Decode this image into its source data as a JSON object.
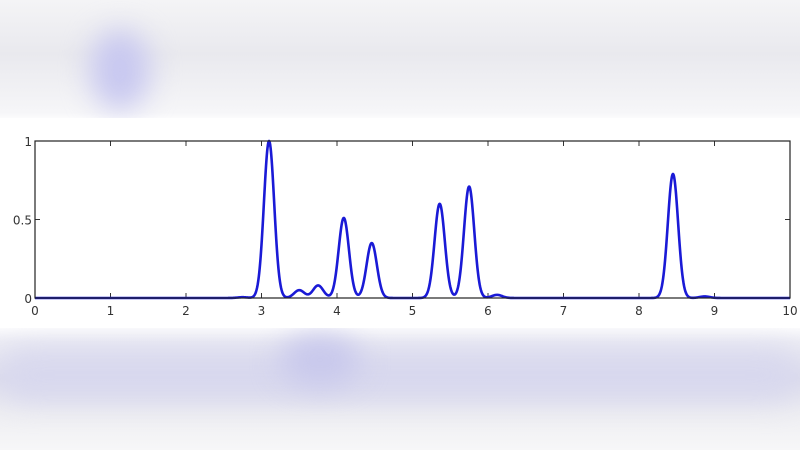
{
  "chart_data": {
    "type": "line",
    "title": "",
    "xlabel": "",
    "ylabel": "",
    "xlim": [
      0,
      10
    ],
    "ylim": [
      0,
      1
    ],
    "xticks": [
      "0",
      "1",
      "2",
      "3",
      "4",
      "5",
      "6",
      "7",
      "8",
      "9",
      "10"
    ],
    "yticks": [
      "0",
      "0.5",
      "1"
    ],
    "grid": false,
    "line_color": "#1a1ad6",
    "peaks": [
      {
        "x": 2.75,
        "y": 0.005
      },
      {
        "x": 3.1,
        "y": 1.0
      },
      {
        "x": 3.5,
        "y": 0.05
      },
      {
        "x": 3.75,
        "y": 0.08
      },
      {
        "x": 4.09,
        "y": 0.51
      },
      {
        "x": 4.46,
        "y": 0.35
      },
      {
        "x": 5.36,
        "y": 0.6
      },
      {
        "x": 5.75,
        "y": 0.71
      },
      {
        "x": 6.12,
        "y": 0.02
      },
      {
        "x": 8.45,
        "y": 0.79
      },
      {
        "x": 8.87,
        "y": 0.01
      }
    ]
  }
}
